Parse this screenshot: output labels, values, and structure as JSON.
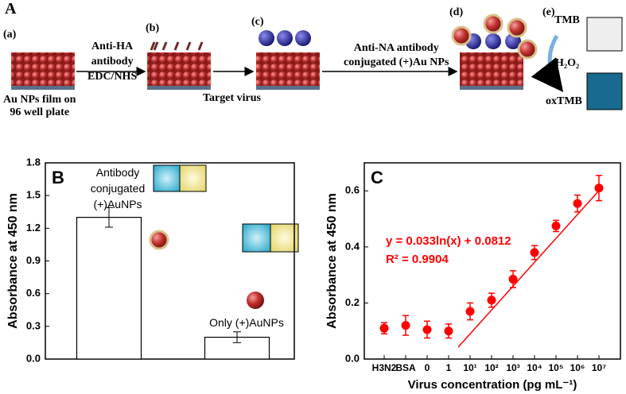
{
  "panel_a": {
    "letter": "A",
    "step_a": "(a)",
    "step_b": "(b)",
    "step_c": "(c)",
    "step_d": "(d)",
    "step_e": "(e)",
    "film": "Au NPs film on\n96 well plate",
    "reagent_1": "Anti-HA\nantibody\nEDC/NHS",
    "target": "Target virus",
    "reagent_2": "Anti-NA antibody\nconjugated (+)Au NPs",
    "tmb": "TMB",
    "h2o2": "H₂O₂",
    "oxtmb": "oxTMB"
  },
  "chart_data": [
    {
      "type": "bar",
      "panel": "B",
      "ylabel": "Absorbance at 450 nm",
      "categories": [
        "Antibody\nconjugated\n(+)AuNPs",
        "Only (+)AuNPs"
      ],
      "values": [
        1.3,
        0.2
      ],
      "errors": [
        0.09,
        0.05
      ],
      "color": "#ffffff",
      "ylim": [
        0,
        1.8
      ],
      "yticks": [
        {
          "value": 0,
          "label": "0.0"
        },
        0.3,
        0.6,
        0.9,
        1.2,
        1.5,
        1.8
      ]
    },
    {
      "type": "scatter",
      "panel": "C",
      "ylabel": "Absorbance at 450 nm",
      "xlabel": "Virus concentration (pg mL⁻¹)",
      "categories": [
        "H3N2",
        "BSA",
        "0",
        "1",
        "10¹",
        "10²",
        "10³",
        "10⁴",
        "10⁵",
        "10⁶",
        "10⁷"
      ],
      "values": [
        0.11,
        0.12,
        0.105,
        0.1,
        0.17,
        0.21,
        0.285,
        0.38,
        0.475,
        0.555,
        0.61
      ],
      "errors": [
        0.02,
        0.035,
        0.03,
        0.025,
        0.03,
        0.025,
        0.03,
        0.025,
        0.02,
        0.03,
        0.045
      ],
      "color": "#ff0000",
      "ylim": [
        0,
        0.7
      ],
      "yticks": [
        {
          "value": 0,
          "label": "0.0"
        },
        0.2,
        0.4,
        0.6
      ],
      "annotations": [
        "y = 0.033ln(x) + 0.0812",
        "R² = 0.9904"
      ]
    }
  ]
}
